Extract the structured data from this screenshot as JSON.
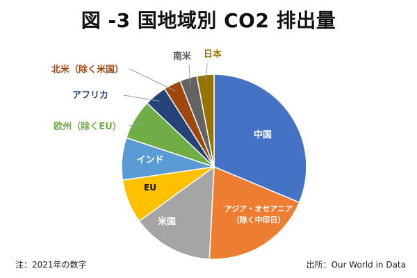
{
  "chart_data": {
    "type": "pie",
    "title": "図 -3 国地域別 CO2 排出量",
    "slices": [
      {
        "label": "中国",
        "value": 31.3,
        "color": "#4472C4"
      },
      {
        "label": "アジア・オセアニア（除く中印日）",
        "value": 19.5,
        "color": "#ED7D31"
      },
      {
        "label": "米国",
        "value": 14.2,
        "color": "#A5A5A5"
      },
      {
        "label": "EU",
        "value": 7.7,
        "color": "#FFC000"
      },
      {
        "label": "インド",
        "value": 7.4,
        "color": "#5B9BD5"
      },
      {
        "label": "欧州（除くEU）",
        "value": 7.0,
        "color": "#70AD47"
      },
      {
        "label": "アフリカ",
        "value": 3.9,
        "color": "#264478"
      },
      {
        "label": "北米（除く米国）",
        "value": 3.0,
        "color": "#9E480E"
      },
      {
        "label": "南米",
        "value": 3.0,
        "color": "#636363"
      },
      {
        "label": "日本",
        "value": 3.0,
        "color": "#997300"
      }
    ],
    "legend": "none"
  },
  "footnotes": {
    "left": "注：2021年の数字",
    "right": "出所：Our World in Data"
  }
}
